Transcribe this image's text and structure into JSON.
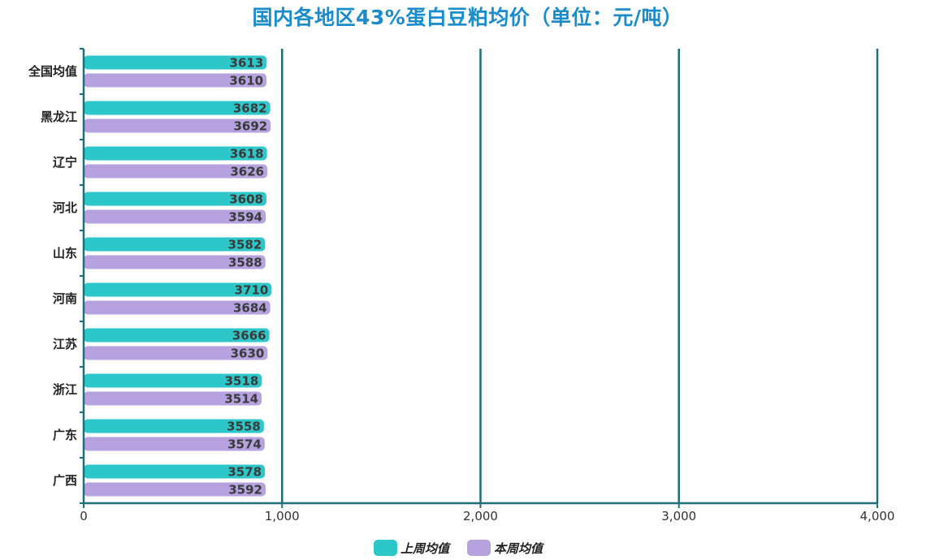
{
  "chart_data": {
    "type": "bar",
    "orientation": "horizontal",
    "title": "国内各地区43%蛋白豆粕均价（单位：元/吨）",
    "categories": [
      "全国均值",
      "黑龙江",
      "辽宁",
      "河北",
      "山东",
      "河南",
      "江苏",
      "浙江",
      "广东",
      "广西"
    ],
    "series": [
      {
        "name": "上周均值",
        "color": "#2ec7c9",
        "values": [
          3613,
          3682,
          3618,
          3608,
          3582,
          3710,
          3666,
          3518,
          3558,
          3578
        ]
      },
      {
        "name": "本周均值",
        "color": "#b6a2de",
        "values": [
          3610,
          3692,
          3626,
          3594,
          3588,
          3684,
          3630,
          3514,
          3574,
          3592
        ]
      }
    ],
    "xlim": [
      0,
      4000
    ],
    "xticks": [
      "0",
      "1,000",
      "2,000",
      "3,000",
      "4,000"
    ],
    "xtick_values": [
      0,
      1000,
      2000,
      3000,
      4000
    ],
    "grid": true,
    "legend_position": "bottom-center",
    "axis_color": "#1f6f78"
  }
}
